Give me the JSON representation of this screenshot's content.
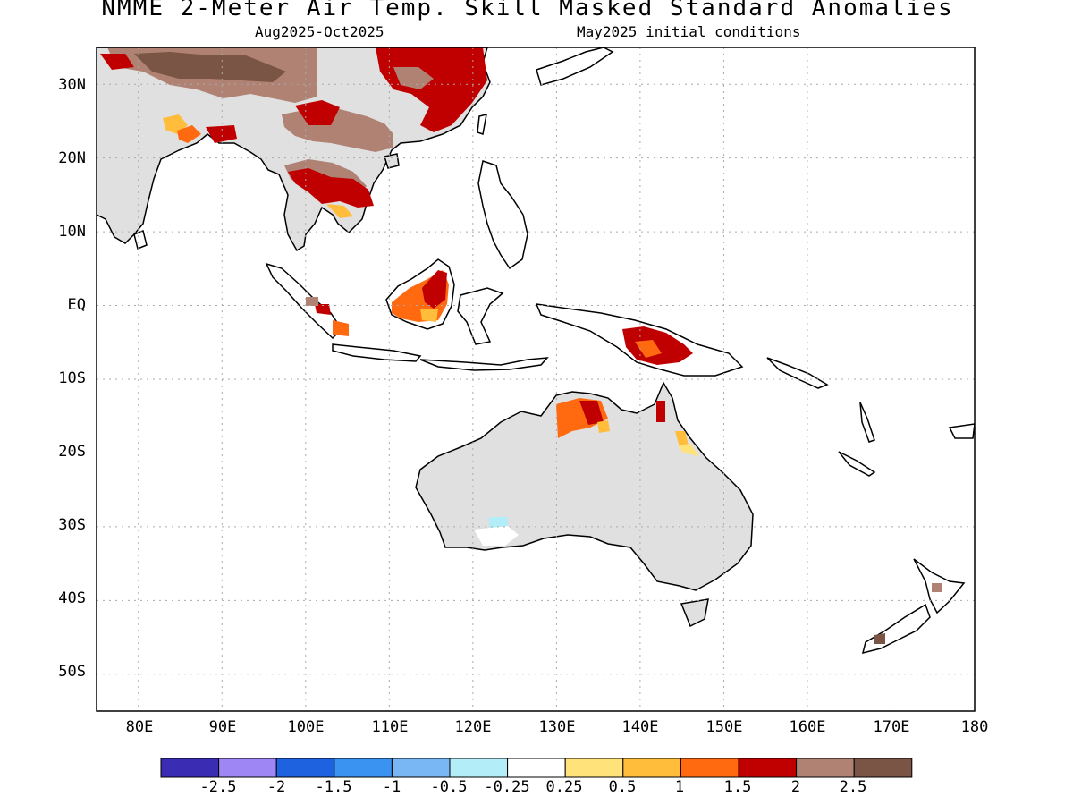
{
  "header": {
    "title": "NMME 2-Meter Air Temp. Skill Masked Standard Anomalies",
    "period": "Aug2025-Oct2025",
    "init": "May2025 initial conditions"
  },
  "axes": {
    "lat_labels": [
      "30N",
      "20N",
      "10N",
      "EQ",
      "10S",
      "20S",
      "30S",
      "40S",
      "50S"
    ],
    "lon_labels": [
      "80E",
      "90E",
      "100E",
      "110E",
      "120E",
      "130E",
      "140E",
      "150E",
      "160E",
      "170E",
      "180"
    ],
    "lon_range": [
      75,
      180
    ],
    "lat_range": [
      -55,
      35
    ]
  },
  "legend": {
    "colors": [
      "#3b2cb4",
      "#9e86f4",
      "#1f62e0",
      "#3a93f0",
      "#79b6f4",
      "#b3eef8",
      "#ffffff",
      "#ffe37a",
      "#ffbd3b",
      "#ff6a10",
      "#c00000",
      "#b08274",
      "#7a5444"
    ],
    "labels": [
      "-2.5",
      "-2",
      "-1.5",
      "-1",
      "-0.5",
      "-0.25",
      "0.25",
      "0.5",
      "1",
      "1.5",
      "2",
      "2.5"
    ]
  },
  "colors": {
    "land_no_skill": "#e0e0e0",
    "coastline": "#000000",
    "grid": "#aaaaaa"
  }
}
